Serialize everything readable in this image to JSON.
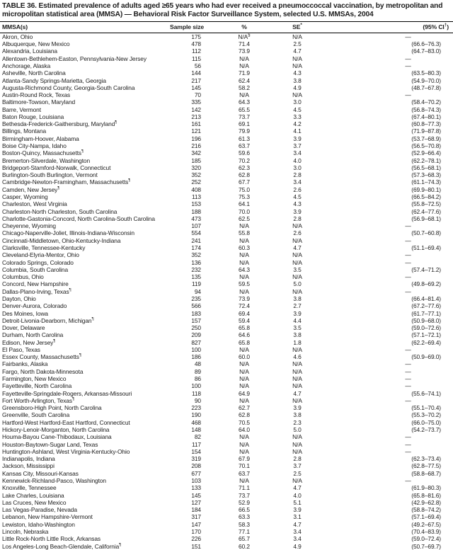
{
  "table": {
    "title": "TABLE 36. Estimated prevalence of adults aged ≥65 years who had ever received a pneumoccoccal vaccination, by metropolitan and micropolitan statistical area (MMSA) — Behavioral Risk Factor Surveillance System, selected U.S. MMSAs, 2004",
    "columns": {
      "mmsa": "MMSA(s)",
      "sample": "Sample size",
      "percent": "%",
      "se": "SE",
      "se_sup": "*",
      "ci": "(95% CI",
      "ci_sup": "†",
      "ci_close": ")"
    },
    "rows": [
      [
        "Akron, Ohio",
        "",
        "175",
        "N/A",
        "§",
        "N/A",
        "—"
      ],
      [
        "Albuquerque, New Mexico",
        "",
        "478",
        "71.4",
        "",
        "2.5",
        "(66.6–76.3)"
      ],
      [
        "Alexandria, Louisiana",
        "",
        "112",
        "73.9",
        "",
        "4.7",
        "(64.7–83.0)"
      ],
      [
        "Allentown-Bethlehem-Easton, Pennsylvania-New Jersey",
        "",
        "115",
        "N/A",
        "",
        "N/A",
        "—"
      ],
      [
        "Anchorage, Alaska",
        "",
        "56",
        "N/A",
        "",
        "N/A",
        "—"
      ],
      [
        "Asheville, North Carolina",
        "",
        "144",
        "71.9",
        "",
        "4.3",
        "(63.5–80.3)"
      ],
      [
        "Atlanta-Sandy Springs-Marietta, Georgia",
        "",
        "217",
        "62.4",
        "",
        "3.8",
        "(54.9–70.0)"
      ],
      [
        "Augusta-Richmond County, Georgia-South Carolina",
        "",
        "145",
        "58.2",
        "",
        "4.9",
        "(48.7–67.8)"
      ],
      [
        "Austin-Round Rock, Texas",
        "",
        "70",
        "N/A",
        "",
        "N/A",
        "—"
      ],
      [
        "Baltimore-Towson, Maryland",
        "",
        "335",
        "64.3",
        "",
        "3.0",
        "(58.4–70.2)"
      ],
      [
        "Barre, Vermont",
        "",
        "142",
        "65.5",
        "",
        "4.5",
        "(56.8–74.3)"
      ],
      [
        "Baton Rouge, Louisiana",
        "",
        "213",
        "73.7",
        "",
        "3.3",
        "(67.4–80.1)"
      ],
      [
        "Bethesda-Frederick-Gaithersburg, Maryland",
        "¶",
        "161",
        "69.1",
        "",
        "4.2",
        "(60.8–77.3)"
      ],
      [
        "Billings, Montana",
        "",
        "121",
        "79.9",
        "",
        "4.1",
        "(71.9–87.8)"
      ],
      [
        "Birmingham-Hoover, Alabama",
        "",
        "196",
        "61.3",
        "",
        "3.9",
        "(53.7–68.9)"
      ],
      [
        "Boise City-Nampa, Idaho",
        "",
        "216",
        "63.7",
        "",
        "3.7",
        "(56.5–70.8)"
      ],
      [
        "Boston-Quincy, Massachusetts",
        "¶",
        "342",
        "59.6",
        "",
        "3.4",
        "(52.9–66.4)"
      ],
      [
        "Bremerton-Silverdale, Washington",
        "",
        "185",
        "70.2",
        "",
        "4.0",
        "(62.2–78.1)"
      ],
      [
        "Bridgeport-Stamford-Norwalk, Connecticut",
        "",
        "320",
        "62.3",
        "",
        "3.0",
        "(56.5–68.1)"
      ],
      [
        "Burlington-South Burlington, Vermont",
        "",
        "352",
        "62.8",
        "",
        "2.8",
        "(57.3–68.3)"
      ],
      [
        "Cambridge-Newton-Framingham, Massachusetts",
        "¶",
        "252",
        "67.7",
        "",
        "3.4",
        "(61.1–74.3)"
      ],
      [
        "Camden, New Jersey",
        "¶",
        "408",
        "75.0",
        "",
        "2.6",
        "(69.9–80.1)"
      ],
      [
        "Casper, Wyoming",
        "",
        "113",
        "75.3",
        "",
        "4.5",
        "(66.5–84.2)"
      ],
      [
        "Charleston, West Virginia",
        "",
        "153",
        "64.1",
        "",
        "4.3",
        "(55.8–72.5)"
      ],
      [
        "Charleston-North Charleston, South Carolina",
        "",
        "188",
        "70.0",
        "",
        "3.9",
        "(62.4–77.6)"
      ],
      [
        "Charlotte-Gastonia-Concord, North Carolina-South Carolina",
        "",
        "473",
        "62.5",
        "",
        "2.8",
        "(56.9–68.1)"
      ],
      [
        "Cheyenne, Wyoming",
        "",
        "107",
        "N/A",
        "",
        "N/A",
        "—"
      ],
      [
        "Chicago-Naperville-Joliet, Illinois-Indiana-Wisconsin",
        "",
        "554",
        "55.8",
        "",
        "2.6",
        "(50.7–60.8)"
      ],
      [
        "Cincinnati-Middletown, Ohio-Kentucky-Indiana",
        "",
        "241",
        "N/A",
        "",
        "N/A",
        "—"
      ],
      [
        "Clarksville, Tennessee-Kentucky",
        "",
        "174",
        "60.3",
        "",
        "4.7",
        "(51.1–69.4)"
      ],
      [
        "Cleveland-Elyria-Mentor, Ohio",
        "",
        "352",
        "N/A",
        "",
        "N/A",
        "—"
      ],
      [
        "Colorado Springs, Colorado",
        "",
        "136",
        "N/A",
        "",
        "N/A",
        "—"
      ],
      [
        "Columbia, South Carolina",
        "",
        "232",
        "64.3",
        "",
        "3.5",
        "(57.4–71.2)"
      ],
      [
        "Columbus, Ohio",
        "",
        "135",
        "N/A",
        "",
        "N/A",
        "—"
      ],
      [
        "Concord, New Hampshire",
        "",
        "119",
        "59.5",
        "",
        "5.0",
        "(49.8–69.2)"
      ],
      [
        "Dallas-Plano-Irving, Texas",
        "¶",
        "94",
        "N/A",
        "",
        "N/A",
        "—"
      ],
      [
        "Dayton, Ohio",
        "",
        "235",
        "73.9",
        "",
        "3.8",
        "(66.4–81.4)"
      ],
      [
        "Denver-Aurora, Colorado",
        "",
        "566",
        "72.4",
        "",
        "2.7",
        "(67.2–77.6)"
      ],
      [
        "Des Moines, Iowa",
        "",
        "183",
        "69.4",
        "",
        "3.9",
        "(61.7–77.1)"
      ],
      [
        "Detroit-Livonia-Dearborn, Michigan",
        "¶",
        "157",
        "59.4",
        "",
        "4.4",
        "(50.9–68.0)"
      ],
      [
        "Dover, Delaware",
        "",
        "250",
        "65.8",
        "",
        "3.5",
        "(59.0–72.6)"
      ],
      [
        "Durham, North Carolina",
        "",
        "209",
        "64.6",
        "",
        "3.8",
        "(57.1–72.1)"
      ],
      [
        "Edison, New Jersey",
        "¶",
        "827",
        "65.8",
        "",
        "1.8",
        "(62.2–69.4)"
      ],
      [
        "El Paso, Texas",
        "",
        "100",
        "N/A",
        "",
        "N/A",
        "—"
      ],
      [
        "Essex County, Massachusetts",
        "¶",
        "186",
        "60.0",
        "",
        "4.6",
        "(50.9–69.0)"
      ],
      [
        "Fairbanks, Alaska",
        "",
        "48",
        "N/A",
        "",
        "N/A",
        "—"
      ],
      [
        "Fargo, North Dakota-Minnesota",
        "",
        "89",
        "N/A",
        "",
        "N/A",
        "—"
      ],
      [
        "Farmington, New Mexico",
        "",
        "86",
        "N/A",
        "",
        "N/A",
        "—"
      ],
      [
        "Fayetteville, North Carolina",
        "",
        "100",
        "N/A",
        "",
        "N/A",
        "—"
      ],
      [
        "Fayetteville-Springdale-Rogers, Arkansas-Missouri",
        "",
        "118",
        "64.9",
        "",
        "4.7",
        "(55.6–74.1)"
      ],
      [
        "Fort Worth-Arlington, Texas",
        "¶",
        "90",
        "N/A",
        "",
        "N/A",
        "—"
      ],
      [
        "Greensboro-High Point, North Carolina",
        "",
        "223",
        "62.7",
        "",
        "3.9",
        "(55.1–70.4)"
      ],
      [
        "Greenville, South Carolina",
        "",
        "190",
        "62.8",
        "",
        "3.8",
        "(55.3–70.2)"
      ],
      [
        "Hartford-West Hartford-East Hartford, Connecticut",
        "",
        "468",
        "70.5",
        "",
        "2.3",
        "(66.0–75.0)"
      ],
      [
        "Hickory-Lenoir-Morganton, North Carolina",
        "",
        "148",
        "64.0",
        "",
        "5.0",
        "(54.2–73.7)"
      ],
      [
        "Houma-Bayou Cane-Thibodaux, Louisiana",
        "",
        "82",
        "N/A",
        "",
        "N/A",
        "—"
      ],
      [
        "Houston-Baytown-Sugar Land, Texas",
        "",
        "117",
        "N/A",
        "",
        "N/A",
        "—"
      ],
      [
        "Huntington-Ashland, West Virginia-Kentucky-Ohio",
        "",
        "154",
        "N/A",
        "",
        "N/A",
        "—"
      ],
      [
        "Indianapolis, Indiana",
        "",
        "319",
        "67.9",
        "",
        "2.8",
        "(62.3–73.4)"
      ],
      [
        "Jackson, Mississippi",
        "",
        "208",
        "70.1",
        "",
        "3.7",
        "(62.8–77.5)"
      ],
      [
        "Kansas City, Missouri-Kansas",
        "",
        "677",
        "63.7",
        "",
        "2.5",
        "(58.8–68.7)"
      ],
      [
        "Kennewick-Richland-Pasco, Washington",
        "",
        "103",
        "N/A",
        "",
        "N/A",
        "—"
      ],
      [
        "Knoxville, Tennessee",
        "",
        "133",
        "71.1",
        "",
        "4.7",
        "(61.9–80.3)"
      ],
      [
        "Lake Charles, Louisiana",
        "",
        "145",
        "73.7",
        "",
        "4.0",
        "(65.8–81.6)"
      ],
      [
        "Las Cruces, New Mexico",
        "",
        "127",
        "52.9",
        "",
        "5.1",
        "(42.9–62.8)"
      ],
      [
        "Las Vegas-Paradise, Nevada",
        "",
        "184",
        "66.5",
        "",
        "3.9",
        "(58.8–74.2)"
      ],
      [
        "Lebanon, New Hampshire-Vermont",
        "",
        "317",
        "63.3",
        "",
        "3.1",
        "(57.1–69.4)"
      ],
      [
        "Lewiston, Idaho-Washington",
        "",
        "147",
        "58.3",
        "",
        "4.7",
        "(49.2–67.5)"
      ],
      [
        "Lincoln, Nebraska",
        "",
        "170",
        "77.1",
        "",
        "3.4",
        "(70.4–83.9)"
      ],
      [
        "Little Rock-North Little Rock, Arkansas",
        "",
        "226",
        "65.7",
        "",
        "3.4",
        "(59.0–72.4)"
      ],
      [
        "Los Angeles-Long Beach-Glendale, California",
        "¶",
        "151",
        "60.2",
        "",
        "4.9",
        "(50.7–69.7)"
      ]
    ]
  }
}
